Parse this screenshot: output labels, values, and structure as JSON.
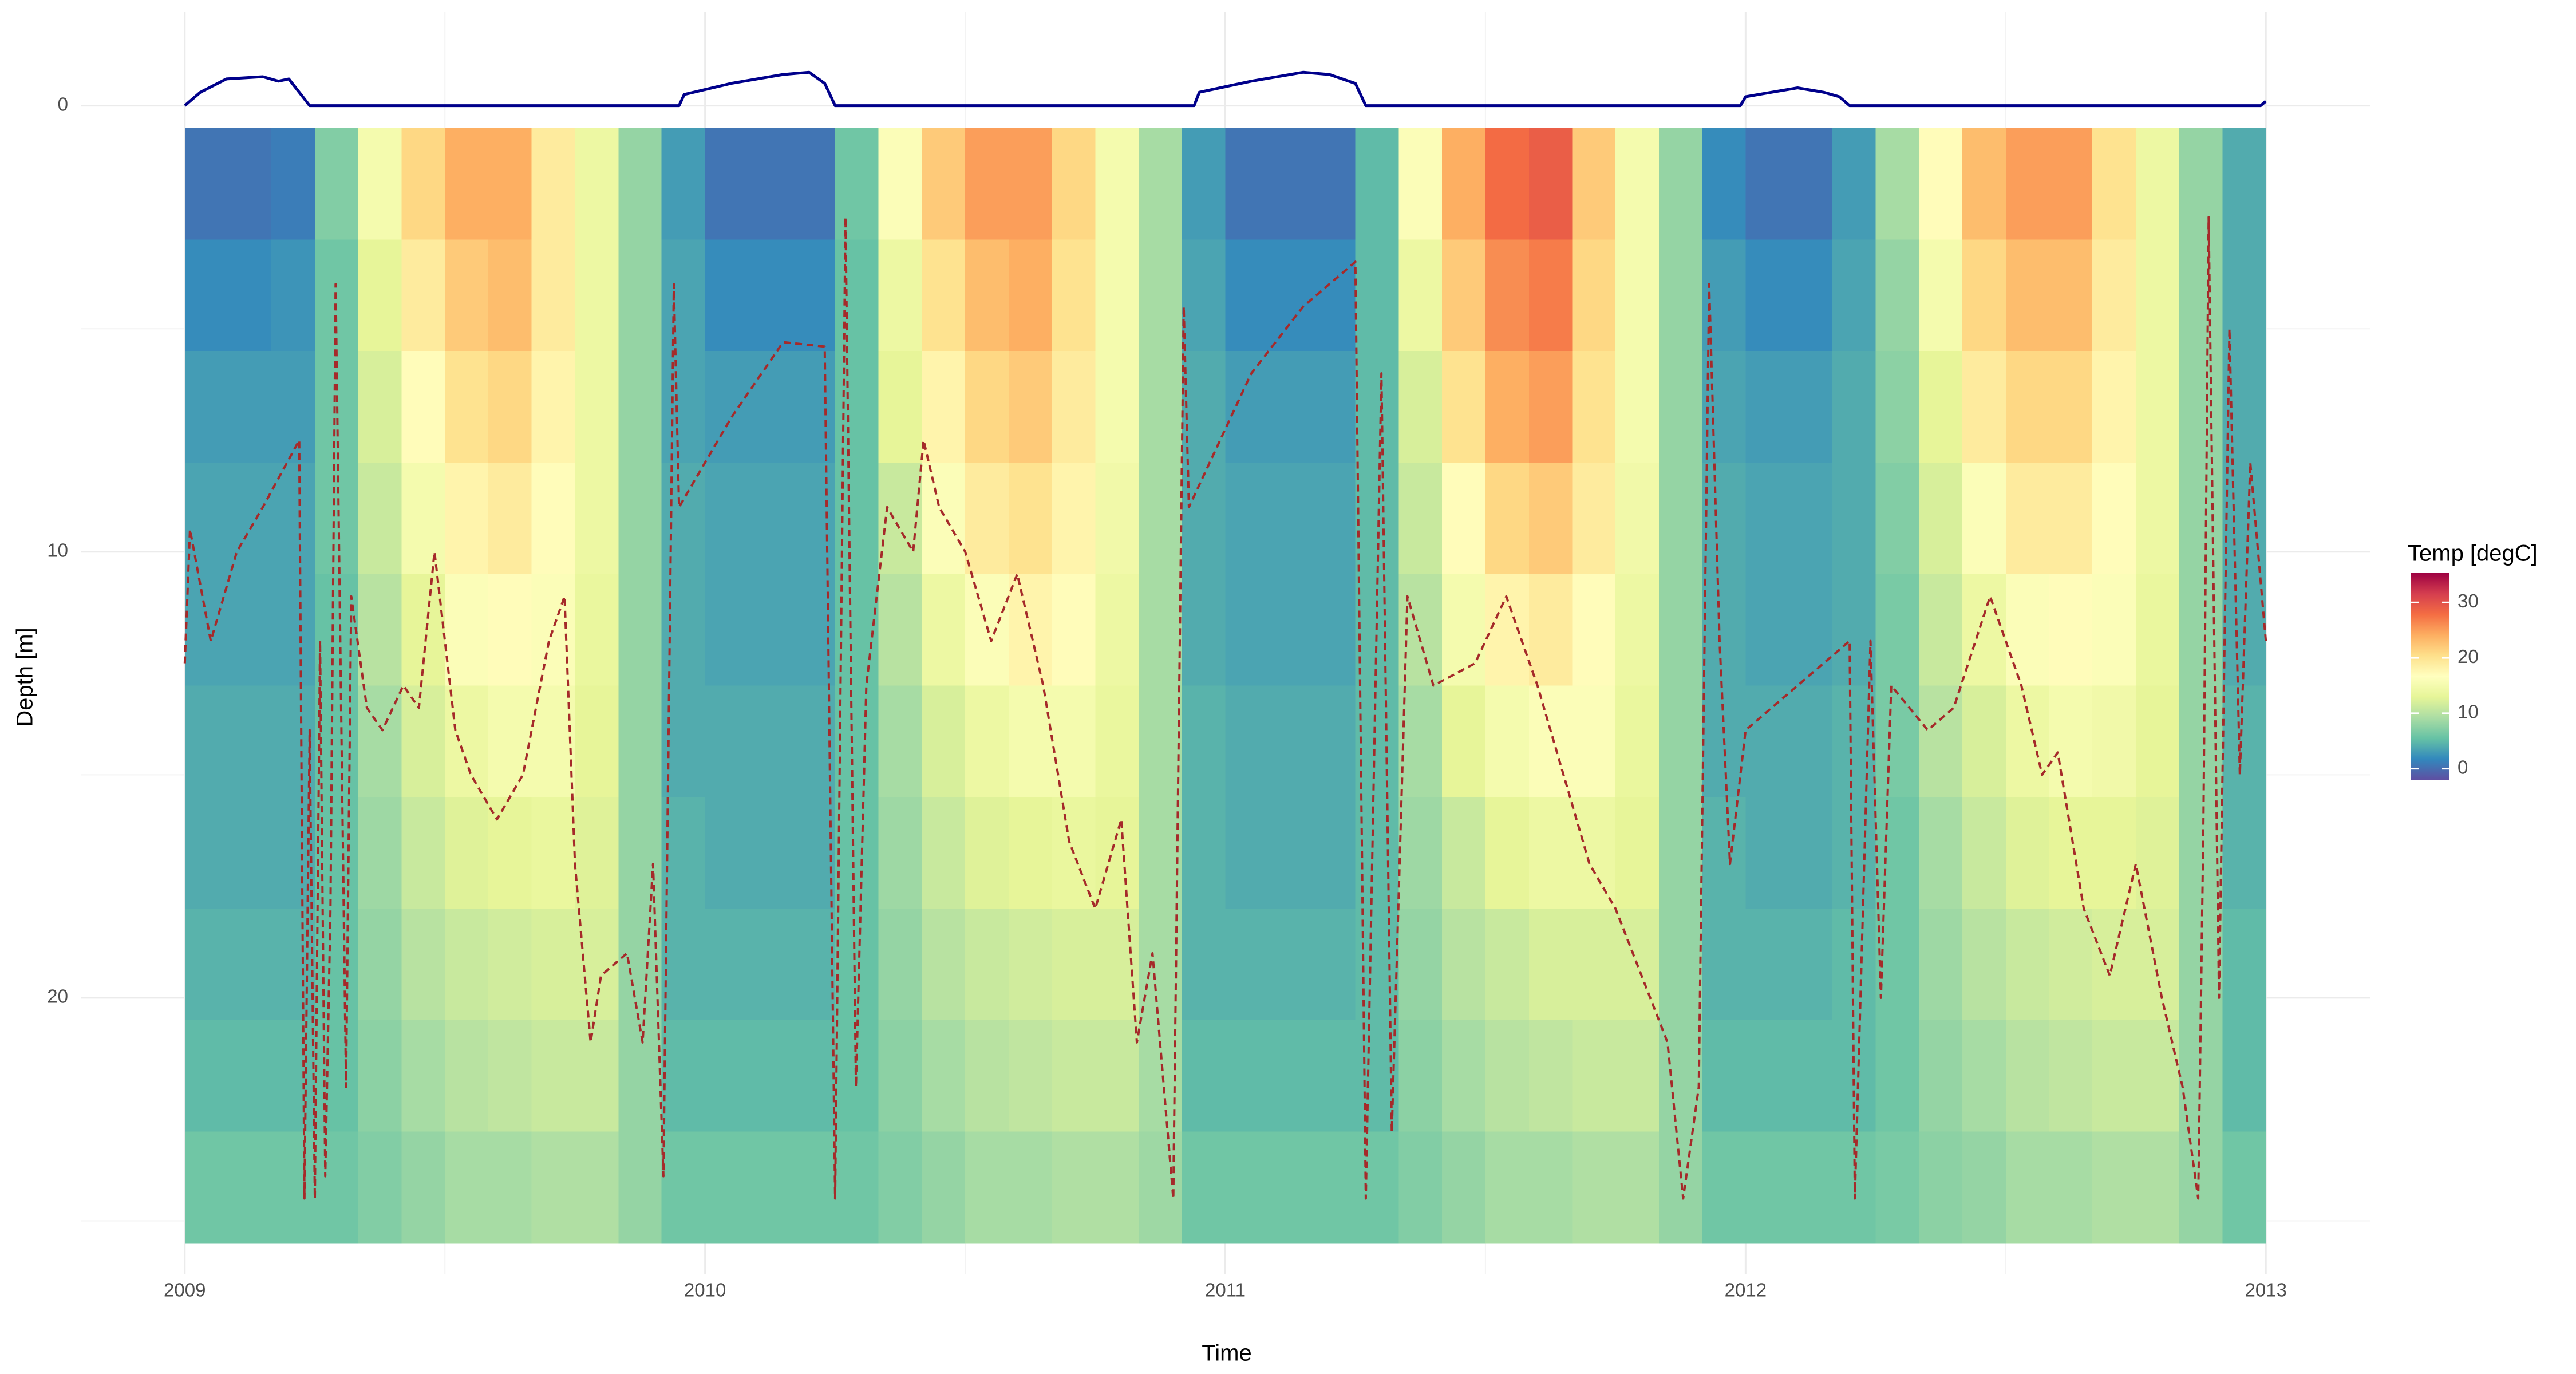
{
  "chart_data": {
    "type": "heatmap",
    "x_label": "Time",
    "y_label": "Depth [m]",
    "xlim": [
      2008.8,
      2013.2
    ],
    "xticks": [
      2009,
      2010,
      2011,
      2012,
      2013
    ],
    "ylim": [
      -2.1,
      26.2
    ],
    "y_reversed": true,
    "yticks": [
      0,
      10,
      20
    ],
    "grid": true,
    "colorbar_title": "Temp [degC]",
    "zlim": [
      -2,
      35.3
    ],
    "colorbar_ticks": [
      0,
      10,
      20,
      30
    ],
    "colors": [
      "#5E4FA2",
      "#3288BD",
      "#66C2A5",
      "#ABDDA4",
      "#E6F598",
      "#FFFFBF",
      "#FEE08B",
      "#FDAE61",
      "#F46D43",
      "#D53E4F",
      "#9E0142"
    ],
    "heatmap": {
      "x": [
        2009.042,
        2009.125,
        2009.208,
        2009.292,
        2009.375,
        2009.458,
        2009.542,
        2009.625,
        2009.708,
        2009.792,
        2009.875,
        2009.958,
        2010.042,
        2010.125,
        2010.208,
        2010.292,
        2010.375,
        2010.458,
        2010.542,
        2010.625,
        2010.708,
        2010.792,
        2010.875,
        2010.958,
        2011.042,
        2011.125,
        2011.208,
        2011.292,
        2011.375,
        2011.458,
        2011.542,
        2011.625,
        2011.708,
        2011.792,
        2011.875,
        2011.958,
        2012.042,
        2012.125,
        2012.208,
        2012.292,
        2012.375,
        2012.458,
        2012.542,
        2012.625,
        2012.708,
        2012.792,
        2012.875,
        2012.958
      ],
      "y": [
        1.75,
        4.25,
        6.75,
        9.25,
        11.75,
        14.25,
        16.75,
        19.25,
        21.75,
        24.25
      ],
      "z": [
        [
          0.5,
          0.5,
          1,
          7,
          15,
          21,
          24,
          24,
          19,
          14,
          8,
          3,
          0.5,
          0.5,
          0.5,
          6,
          16,
          22,
          25,
          25,
          21,
          15,
          9,
          3,
          0.5,
          0.5,
          0.5,
          5,
          16,
          24,
          28,
          29,
          22,
          15,
          8,
          2,
          0.5,
          0.5,
          3,
          9,
          17,
          23,
          25,
          25,
          20,
          14,
          8,
          4
        ],
        [
          2,
          2,
          2.5,
          6,
          13,
          19,
          22,
          23,
          19,
          14,
          8,
          3.5,
          2,
          2,
          2,
          5.5,
          14,
          20,
          23,
          24,
          20,
          15,
          9,
          3.5,
          2,
          2,
          2,
          5,
          14,
          22,
          26,
          27,
          21,
          15,
          8,
          3,
          2,
          2,
          3.5,
          8,
          15,
          21,
          23,
          23,
          19,
          14,
          8,
          4
        ],
        [
          3,
          3,
          3,
          6,
          12,
          17,
          20,
          21,
          18,
          14,
          8,
          3.5,
          3,
          3,
          3,
          5.5,
          13,
          18,
          21,
          22,
          19,
          15,
          9,
          4,
          3,
          3,
          3,
          5,
          12,
          20,
          24,
          25,
          20,
          15,
          8,
          3.5,
          3,
          3,
          4,
          7.5,
          13,
          19,
          21,
          21,
          18,
          14,
          8,
          4
        ],
        [
          3.5,
          3.5,
          3.5,
          6,
          11,
          15,
          18,
          19,
          17,
          14,
          8,
          4,
          3.5,
          3.5,
          3.5,
          5.5,
          11,
          16,
          19,
          20,
          18,
          14.5,
          9,
          4,
          3.5,
          3.5,
          3.5,
          5,
          11,
          17,
          21,
          22,
          19,
          14.5,
          8,
          4,
          3.5,
          3.5,
          4,
          7,
          12,
          16,
          19,
          19,
          17,
          14,
          8,
          4
        ],
        [
          3.5,
          3.5,
          3.5,
          5.5,
          10,
          13,
          16,
          17,
          16,
          13.5,
          8,
          4,
          3.5,
          3.5,
          3.5,
          5.5,
          10,
          14,
          16,
          18,
          17,
          14,
          9,
          4,
          3.5,
          3.5,
          3.5,
          5,
          10,
          15,
          18,
          19,
          17,
          14,
          8,
          4,
          3.5,
          3.5,
          4,
          6.5,
          11,
          14,
          16,
          17,
          16,
          13.5,
          8,
          4
        ],
        [
          4,
          4,
          4,
          5.5,
          9,
          12,
          14,
          15,
          15,
          13,
          8,
          4,
          4,
          4,
          4,
          5.5,
          9,
          12,
          14,
          15,
          15,
          13.5,
          9,
          4.5,
          4,
          4,
          4,
          5,
          9,
          13,
          15,
          16,
          16,
          13.5,
          8,
          4,
          4,
          4,
          4.5,
          6.5,
          10,
          12,
          14,
          15,
          14.5,
          13,
          8,
          4.5
        ],
        [
          4,
          4,
          4,
          5.5,
          8.5,
          11,
          12.5,
          13,
          13.5,
          12.5,
          8,
          4.5,
          4,
          4,
          4,
          5.5,
          8.5,
          11,
          12.5,
          13,
          13.5,
          13,
          9,
          4.5,
          4,
          4,
          4,
          5,
          8.5,
          11,
          13,
          14,
          14,
          13,
          8,
          4.5,
          4,
          4,
          4.5,
          6,
          9,
          11,
          12.5,
          13,
          13,
          12.5,
          8,
          4.5
        ],
        [
          4.5,
          4.5,
          4.5,
          5.5,
          8,
          10,
          11,
          11.5,
          12,
          12,
          8,
          4.5,
          4.5,
          4.5,
          4.5,
          5.5,
          8,
          10,
          11,
          11.5,
          12,
          12,
          9,
          4.5,
          4.5,
          4.5,
          4.5,
          5,
          8,
          10,
          11,
          12,
          12,
          12,
          8,
          4.5,
          4.5,
          4.5,
          5,
          6,
          8.5,
          10,
          11,
          11.5,
          12,
          12,
          8,
          5
        ],
        [
          5,
          5,
          5,
          5.5,
          7.5,
          9,
          10,
          10.5,
          11,
          11,
          8,
          5,
          5,
          5,
          5,
          5.5,
          7.5,
          9,
          10,
          10.5,
          11,
          11,
          9,
          5,
          5,
          5,
          5,
          5,
          7.5,
          9,
          10,
          10.5,
          11,
          11,
          8,
          5,
          5,
          5,
          5,
          6,
          8,
          9,
          10,
          10.5,
          11,
          11,
          8,
          5
        ],
        [
          6,
          6,
          6,
          6,
          7,
          8,
          9,
          9,
          9.5,
          9.5,
          8,
          6,
          6,
          6,
          6,
          6,
          7,
          8,
          9,
          9,
          9.5,
          9.5,
          8.5,
          6,
          6,
          6,
          6,
          6,
          7,
          8,
          9,
          9,
          9.5,
          9.5,
          8,
          6,
          6,
          6,
          6,
          6.5,
          7.5,
          8,
          9,
          9,
          9.5,
          9.5,
          8,
          6
        ]
      ]
    },
    "series": [
      {
        "color": "#00008B",
        "dash": false,
        "x": [
          2009.0,
          2009.03,
          2009.08,
          2009.15,
          2009.18,
          2009.2,
          2009.22,
          2009.24,
          2009.95,
          2009.96,
          2010.05,
          2010.15,
          2010.2,
          2010.23,
          2010.25,
          2010.94,
          2010.95,
          2011.05,
          2011.15,
          2011.2,
          2011.25,
          2011.27,
          2011.99,
          2012.0,
          2012.05,
          2012.1,
          2012.15,
          2012.18,
          2012.2,
          2012.99,
          2013.0
        ],
        "values": [
          0,
          -0.3,
          -0.6,
          -0.65,
          -0.55,
          -0.6,
          -0.3,
          0,
          0,
          -0.25,
          -0.5,
          -0.7,
          -0.75,
          -0.5,
          0,
          0,
          -0.3,
          -0.55,
          -0.75,
          -0.7,
          -0.5,
          0,
          0,
          -0.2,
          -0.3,
          -0.4,
          -0.3,
          -0.2,
          0,
          0,
          -0.1
        ]
      },
      {
        "color": "#A52A2A",
        "dash": true,
        "x": [
          2009.0,
          2009.01,
          2009.05,
          2009.1,
          2009.15,
          2009.22,
          2009.23,
          2009.24,
          2009.25,
          2009.26,
          2009.27,
          2009.28,
          2009.29,
          2009.31,
          2009.32,
          2009.35,
          2009.38,
          2009.42,
          2009.45,
          2009.48,
          2009.52,
          2009.55,
          2009.6,
          2009.65,
          2009.7,
          2009.73,
          2009.75,
          2009.78,
          2009.8,
          2009.85,
          2009.88,
          2009.9,
          2009.92,
          2009.94,
          2009.95,
          2010.05,
          2010.15,
          2010.23,
          2010.25,
          2010.27,
          2010.29,
          2010.31,
          2010.35,
          2010.4,
          2010.42,
          2010.45,
          2010.5,
          2010.55,
          2010.6,
          2010.65,
          2010.7,
          2010.75,
          2010.8,
          2010.83,
          2010.86,
          2010.9,
          2010.92,
          2010.93,
          2011.05,
          2011.15,
          2011.25,
          2011.27,
          2011.3,
          2011.32,
          2011.35,
          2011.4,
          2011.48,
          2011.54,
          2011.6,
          2011.65,
          2011.7,
          2011.75,
          2011.8,
          2011.85,
          2011.88,
          2011.91,
          2011.93,
          2011.95,
          2011.97,
          2012.0,
          2012.2,
          2012.21,
          2012.24,
          2012.26,
          2012.28,
          2012.35,
          2012.4,
          2012.47,
          2012.53,
          2012.57,
          2012.6,
          2012.65,
          2012.7,
          2012.75,
          2012.8,
          2012.84,
          2012.87,
          2012.88,
          2012.89,
          2012.91,
          2012.93,
          2012.95,
          2012.97,
          2013.0
        ],
        "values": [
          12.5,
          9.5,
          12,
          10,
          9,
          7.5,
          24.5,
          14,
          24.5,
          12,
          24,
          18,
          4,
          22,
          11,
          13.5,
          14,
          13,
          13.5,
          10,
          14,
          15,
          16,
          15,
          12,
          11,
          17,
          21,
          19.5,
          19,
          21,
          17,
          24,
          4,
          9,
          7,
          5.3,
          5.4,
          24.5,
          2.5,
          22,
          13,
          9,
          10,
          7.5,
          9,
          10,
          12,
          10.5,
          13,
          16.5,
          18,
          16,
          21,
          19,
          24.5,
          4.5,
          9,
          6,
          4.5,
          3.5,
          24.5,
          6,
          23,
          11,
          13,
          12.5,
          11,
          13,
          15,
          17,
          18,
          19.5,
          21,
          24.5,
          22,
          4,
          12,
          17,
          14,
          12,
          24.5,
          12,
          20,
          13,
          14,
          13.5,
          11,
          13,
          15,
          14.5,
          18,
          19.5,
          17,
          20,
          22,
          24.5,
          16,
          2.5,
          20,
          5,
          15,
          8,
          12
        ]
      }
    ]
  }
}
